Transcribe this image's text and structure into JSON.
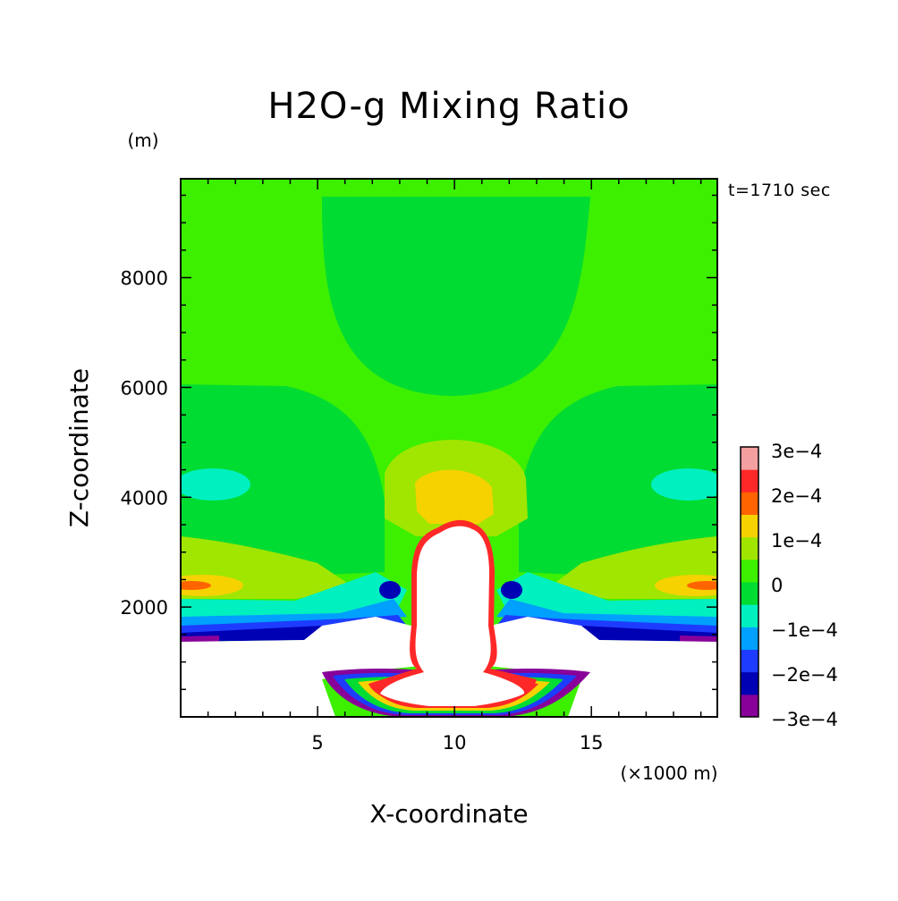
{
  "chart_data": {
    "type": "heatmap",
    "title": "H2O-g Mixing Ratio",
    "xlabel": "X-coordinate",
    "ylabel": "Z-coordinate",
    "x_unit": "(×1000 m)",
    "y_unit": "(m)",
    "time_label": "t=1710 sec",
    "xlim": [
      0,
      19.6
    ],
    "ylim": [
      0,
      9800
    ],
    "x_ticks": [
      {
        "value": 5,
        "label": "5"
      },
      {
        "value": 10,
        "label": "10"
      },
      {
        "value": 15,
        "label": "15"
      }
    ],
    "y_ticks": [
      {
        "value": 2000,
        "label": "2000"
      },
      {
        "value": 4000,
        "label": "4000"
      },
      {
        "value": 6000,
        "label": "6000"
      },
      {
        "value": 8000,
        "label": "8000"
      }
    ],
    "colorbar": {
      "levels": [
        {
          "color": "#880099"
        },
        {
          "color": "#0000b4"
        },
        {
          "color": "#1e3cff"
        },
        {
          "color": "#00a0ff"
        },
        {
          "color": "#00f0c0"
        },
        {
          "color": "#00dc32"
        },
        {
          "color": "#3cf000"
        },
        {
          "color": "#a0e600"
        },
        {
          "color": "#f5d200"
        },
        {
          "color": "#ff6400"
        },
        {
          "color": "#ff2828"
        },
        {
          "color": "#f5a0a0"
        }
      ],
      "labels": [
        "3e−4",
        "2e−4",
        "1e−4",
        "0",
        "−1e−4",
        "−2e−4",
        "−3e−4"
      ]
    },
    "regions": [
      {
        "name": "upper-core",
        "color": "#00dc32",
        "x_range": [
          5.2,
          15.2
        ],
        "z_range": [
          5800,
          9700
        ]
      },
      {
        "name": "left-anomaly",
        "color": "#00f0c0",
        "center": [
          1.5,
          4300
        ]
      },
      {
        "name": "right-anomaly",
        "color": "#00f0c0",
        "center": [
          18.1,
          4300
        ]
      },
      {
        "name": "plume-positive",
        "color": "#f5d200",
        "center": [
          10.3,
          4250
        ]
      },
      {
        "name": "left-moist-band",
        "color": "#ff6400",
        "center": [
          0.3,
          2450
        ]
      },
      {
        "name": "right-moist-band",
        "color": "#ff6400",
        "center": [
          19.3,
          2450
        ]
      },
      {
        "name": "cloud-core",
        "color": "#ffffff",
        "x_range": [
          8.6,
          11.7
        ],
        "z_range": [
          0,
          3650
        ]
      }
    ]
  }
}
